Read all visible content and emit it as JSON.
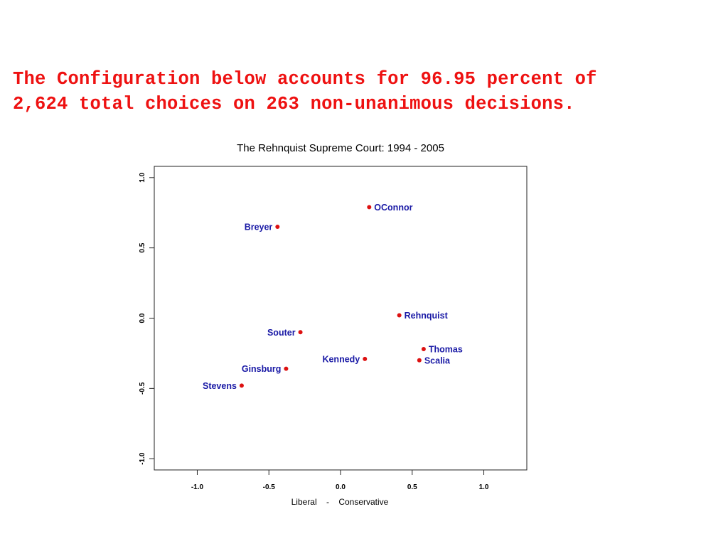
{
  "headline": {
    "line1": "The Configuration below accounts for 96.95 percent of",
    "line2": "2,624 total choices on 263 non-unanimous decisions.",
    "color": "#ee1111"
  },
  "chart_data": {
    "type": "scatter",
    "title": "The Rehnquist Supreme Court: 1994 - 2005",
    "xlabel": "Liberal    -    Conservative",
    "ylabel": "",
    "xlim": [
      -1.3,
      1.3
    ],
    "ylim": [
      -1.08,
      1.08
    ],
    "xticks": [
      "-1.0",
      "-0.5",
      "0.0",
      "0.5",
      "1.0"
    ],
    "yticks": [
      "1.0",
      "0.5",
      "0.0",
      "-0.5",
      "-1.0"
    ],
    "grid": false,
    "point_color": "#dd1111",
    "label_color": "#1a1aa6",
    "points": [
      {
        "name": "OConnor",
        "x": 0.2,
        "y": 0.79,
        "label_side": "right"
      },
      {
        "name": "Breyer",
        "x": -0.44,
        "y": 0.65,
        "label_side": "left"
      },
      {
        "name": "Rehnquist",
        "x": 0.41,
        "y": 0.02,
        "label_side": "right"
      },
      {
        "name": "Souter",
        "x": -0.28,
        "y": -0.1,
        "label_side": "left"
      },
      {
        "name": "Thomas",
        "x": 0.58,
        "y": -0.22,
        "label_side": "right"
      },
      {
        "name": "Kennedy",
        "x": 0.17,
        "y": -0.29,
        "label_side": "left"
      },
      {
        "name": "Scalia",
        "x": 0.55,
        "y": -0.3,
        "label_side": "right"
      },
      {
        "name": "Ginsburg",
        "x": -0.38,
        "y": -0.36,
        "label_side": "left"
      },
      {
        "name": "Stevens",
        "x": -0.69,
        "y": -0.48,
        "label_side": "left"
      }
    ]
  }
}
